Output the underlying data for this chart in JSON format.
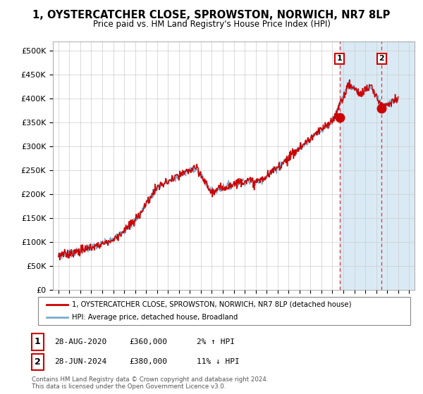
{
  "title": "1, OYSTERCATCHER CLOSE, SPROWSTON, NORWICH, NR7 8LP",
  "subtitle": "Price paid vs. HM Land Registry's House Price Index (HPI)",
  "hpi_label": "HPI: Average price, detached house, Broadland",
  "property_label": "1, OYSTERCATCHER CLOSE, SPROWSTON, NORWICH, NR7 8LP (detached house)",
  "sale1_date": "28-AUG-2020",
  "sale1_price": 360000,
  "sale1_pct": "2% ↑ HPI",
  "sale2_date": "28-JUN-2024",
  "sale2_price": 380000,
  "sale2_pct": "11% ↓ HPI",
  "footer": "Contains HM Land Registry data © Crown copyright and database right 2024.\nThis data is licensed under the Open Government Licence v3.0.",
  "red_color": "#cc0000",
  "blue_color": "#7aadcf",
  "shaded_color": "#daeaf5",
  "grid_color": "#cccccc",
  "background_color": "#ffffff",
  "sale1_x": 2020.66,
  "sale2_x": 2024.49,
  "sale1_y": 360000,
  "sale2_y": 380000,
  "ylim": [
    0,
    520000
  ],
  "xlim_start": 1994.5,
  "xlim_end": 2027.5,
  "hatch_color": "#aaaaaa"
}
